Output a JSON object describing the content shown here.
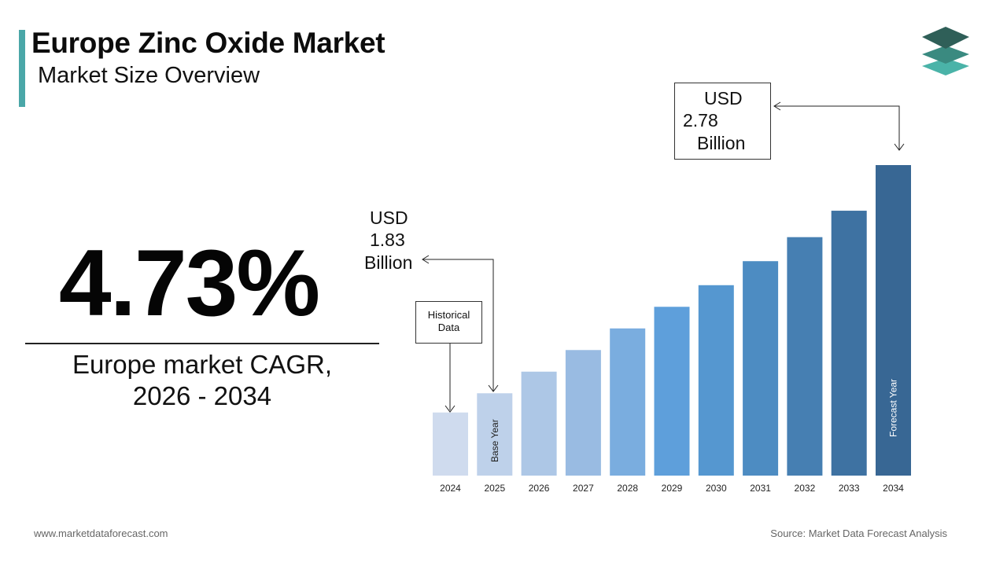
{
  "header": {
    "title": "Europe Zinc Oxide Market",
    "subtitle": "Market Size Overview"
  },
  "logo": {
    "icon": "stacked-layers-logo-icon"
  },
  "cagr": {
    "value": "4.73%",
    "label_line1": "Europe market CAGR,",
    "label_line2": "2026 - 2034"
  },
  "callouts": {
    "base": {
      "line1": "USD",
      "line2": "1.83",
      "line3": "Billion"
    },
    "forecast": {
      "line1": "USD",
      "line2": "2.78",
      "line3": "Billion"
    },
    "historical": {
      "line1": "Historical",
      "line2": "Data"
    }
  },
  "bar_labels": {
    "base_year": "Base Year",
    "forecast_year": "Forecast Year"
  },
  "chart_data": {
    "type": "bar",
    "categories": [
      "2024",
      "2025",
      "2026",
      "2027",
      "2028",
      "2029",
      "2030",
      "2031",
      "2032",
      "2033",
      "2034"
    ],
    "values": [
      1.75,
      1.83,
      1.92,
      2.01,
      2.1,
      2.19,
      2.28,
      2.38,
      2.48,
      2.59,
      2.78
    ],
    "colors": [
      "#cfdbee",
      "#bed1ea",
      "#adc7e6",
      "#99bbe2",
      "#7aaddf",
      "#5e9fdb",
      "#5597d0",
      "#4d8cc2",
      "#467fb2",
      "#3e72a2",
      "#386794"
    ],
    "grid": false,
    "legend": "none"
  },
  "footer": {
    "website": "www.marketdataforecast.com",
    "source": "Source: Market Data Forecast Analysis"
  }
}
